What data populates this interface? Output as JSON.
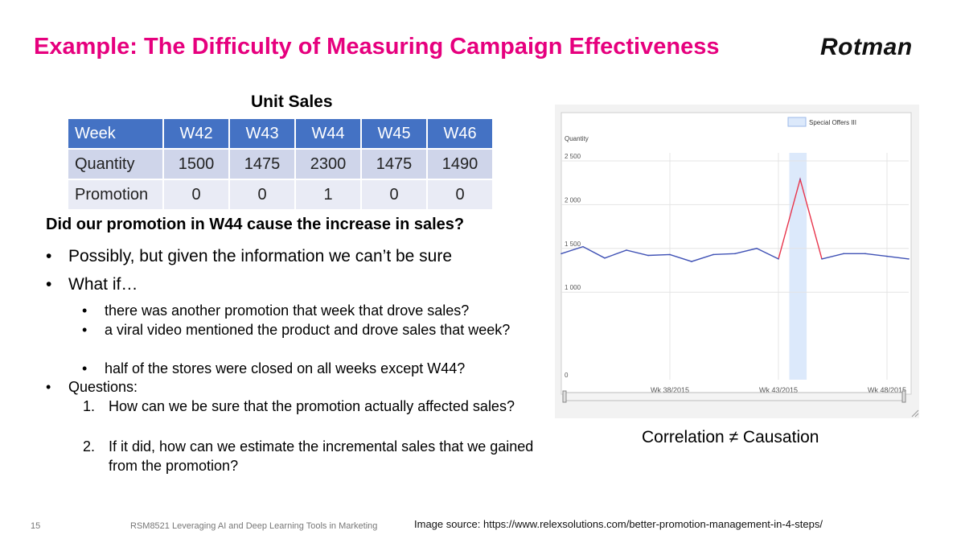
{
  "slide": {
    "title": "Example: The Difficulty of Measuring Campaign Effectiveness",
    "logo": "Rotman",
    "table_caption": "Unit Sales",
    "table": {
      "header": [
        "Week",
        "W42",
        "W43",
        "W44",
        "W45",
        "W46"
      ],
      "quantity": [
        "Quantity",
        "1500",
        "1475",
        "2300",
        "1475",
        "1490"
      ],
      "promotion": [
        "Promotion",
        "0",
        "0",
        "1",
        "0",
        "0"
      ]
    },
    "question": "Did our promotion in W44 cause the increase in sales?",
    "bullets": {
      "b1": "Possibly, but given the information we can’t be sure",
      "b2": "What if…",
      "b2_subs": [
        "there was another promotion that week that drove sales?",
        "a viral video mentioned the product and drove sales that week?",
        "half of the stores were closed on all weeks except W44?"
      ],
      "b3": "Questions:",
      "b3_items": [
        "How can we be sure that the promotion actually affected sales?",
        "If it did, how can we estimate the incremental sales that we gained from the promotion?"
      ],
      "bullet_mark": "•",
      "numbers": [
        "1.",
        "2."
      ]
    },
    "correlation_note": "Correlation ≠ Causation",
    "footer": {
      "page_number": "15",
      "course": "RSM8521 Leveraging AI and Deep Learning Tools in Marketing",
      "image_source": "Image source: https://www.relexsolutions.com/better-promotion-management-in-4-steps/"
    }
  },
  "chart_data": {
    "type": "line",
    "ylabel": "Quantity",
    "ylim": [
      0,
      2500
    ],
    "yticks": [
      0,
      1000,
      1500,
      2000,
      2500
    ],
    "ytick_labels": [
      "0",
      "1 000",
      "1 500",
      "2 000",
      "2 500"
    ],
    "xlim": [
      33,
      49
    ],
    "xticks": [
      38,
      43,
      48
    ],
    "xtick_labels": [
      "Wk 38/2015",
      "Wk 43/2015",
      "Wk 48/2015"
    ],
    "legend": "Special Offers III",
    "legend_placement": "top-right",
    "highlight_band": [
      43.5,
      44.3
    ],
    "series": [
      {
        "name": "Quantity",
        "x": [
          33,
          34,
          35,
          36,
          37,
          38,
          39,
          40,
          41,
          42,
          43,
          44,
          45,
          46,
          47,
          48,
          49
        ],
        "values": [
          1440,
          1520,
          1390,
          1480,
          1420,
          1430,
          1350,
          1430,
          1440,
          1500,
          1380,
          2290,
          1380,
          1440,
          1440,
          1410,
          1380
        ]
      }
    ],
    "promo_segment_x": [
      43,
      45
    ],
    "colors": {
      "baseline": "#3f51b5",
      "promo": "#e8354c",
      "band": "#dce9fb",
      "grid": "#e4e4e4"
    }
  }
}
